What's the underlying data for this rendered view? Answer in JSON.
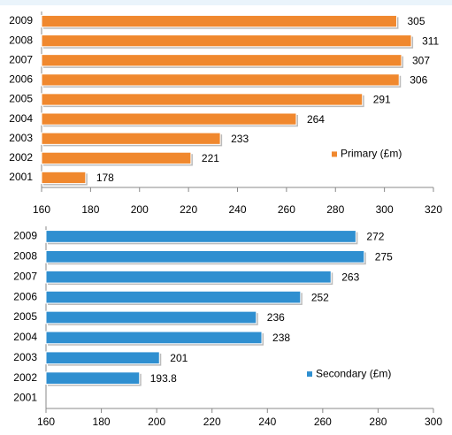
{
  "chart_data": [
    {
      "type": "bar",
      "orientation": "horizontal",
      "categories": [
        "2009",
        "2008",
        "2007",
        "2006",
        "2005",
        "2004",
        "2003",
        "2002",
        "2001"
      ],
      "series": [
        {
          "name": "Primary (£m)",
          "color": "#f0882e",
          "values": [
            305,
            311,
            307,
            306,
            291,
            264,
            233,
            221,
            178
          ]
        }
      ],
      "xlim": [
        160,
        320
      ],
      "xticks": [
        160,
        180,
        200,
        220,
        240,
        260,
        280,
        300,
        320
      ],
      "legend": "lower right",
      "data_labels": true
    },
    {
      "type": "bar",
      "orientation": "horizontal",
      "categories": [
        "2009",
        "2008",
        "2007",
        "2006",
        "2005",
        "2004",
        "2003",
        "2002",
        "2001"
      ],
      "series": [
        {
          "name": "Secondary (£m)",
          "color": "#2f8fd0",
          "values": [
            272,
            275,
            263,
            252,
            236,
            238,
            201,
            193.8,
            null
          ]
        }
      ],
      "xlim": [
        160,
        300
      ],
      "xticks": [
        160,
        180,
        200,
        220,
        240,
        260,
        280,
        300
      ],
      "legend": "lower right",
      "data_labels": true
    }
  ]
}
